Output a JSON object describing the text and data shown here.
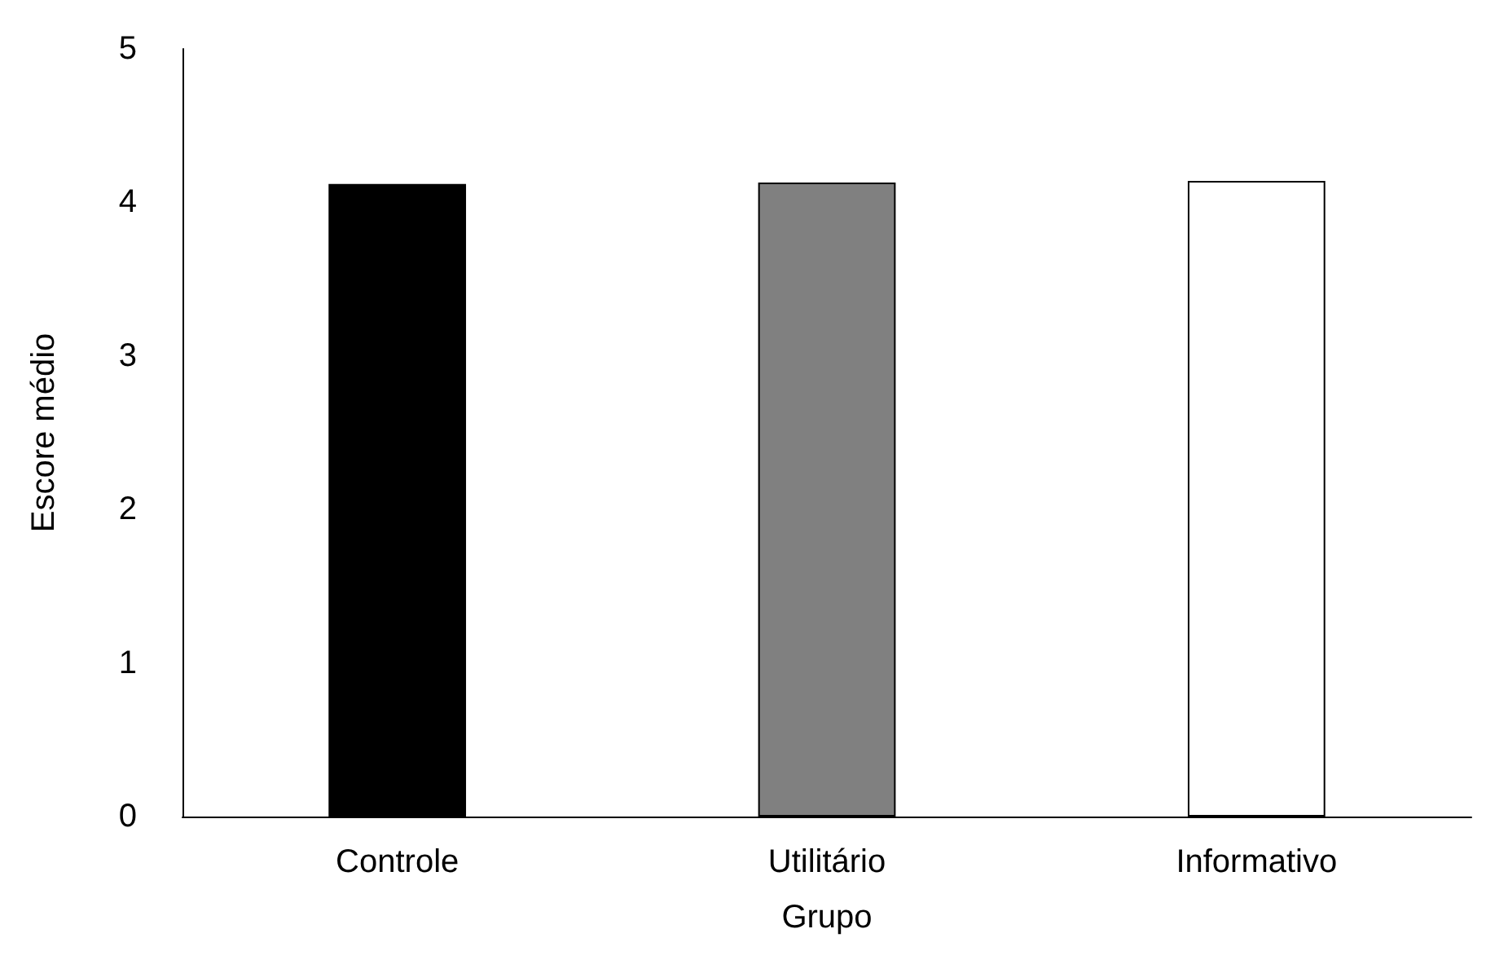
{
  "chart_data": {
    "type": "bar",
    "xlabel": "Grupo",
    "ylabel": "Escore médio",
    "categories": [
      "Controle",
      "Utilitário",
      "Informativo"
    ],
    "values": [
      4.12,
      4.13,
      4.14
    ],
    "colors": [
      "#000000",
      "#808080",
      "#ffffff"
    ],
    "ylim": [
      0,
      5
    ],
    "yticks": [
      0,
      1,
      2,
      3,
      4,
      5
    ],
    "grid": false
  }
}
